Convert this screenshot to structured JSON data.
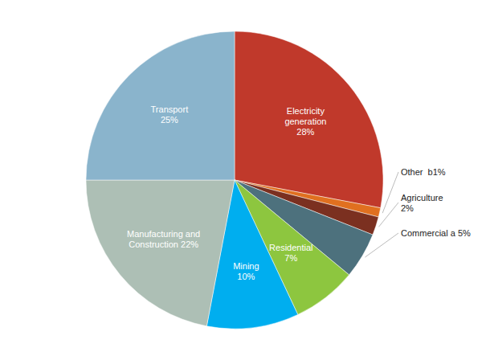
{
  "chart_data": {
    "type": "pie",
    "categories": [
      "Electricity\ngeneration\n28%",
      "Other  b1%",
      "Agriculture\n2%",
      "Commercial a 5%",
      "Residential\n7%",
      "Mining\n10%",
      "Manufacturing and\nConstruction 22%",
      "Transport\n25%"
    ],
    "values": [
      28,
      1,
      2,
      5,
      7,
      10,
      22,
      25
    ],
    "colors": [
      "#c0392b",
      "#e07020",
      "#7b3020",
      "#4d717d",
      "#8dc63f",
      "#00aeef",
      "#adbfb5",
      "#8ab4cc"
    ]
  }
}
